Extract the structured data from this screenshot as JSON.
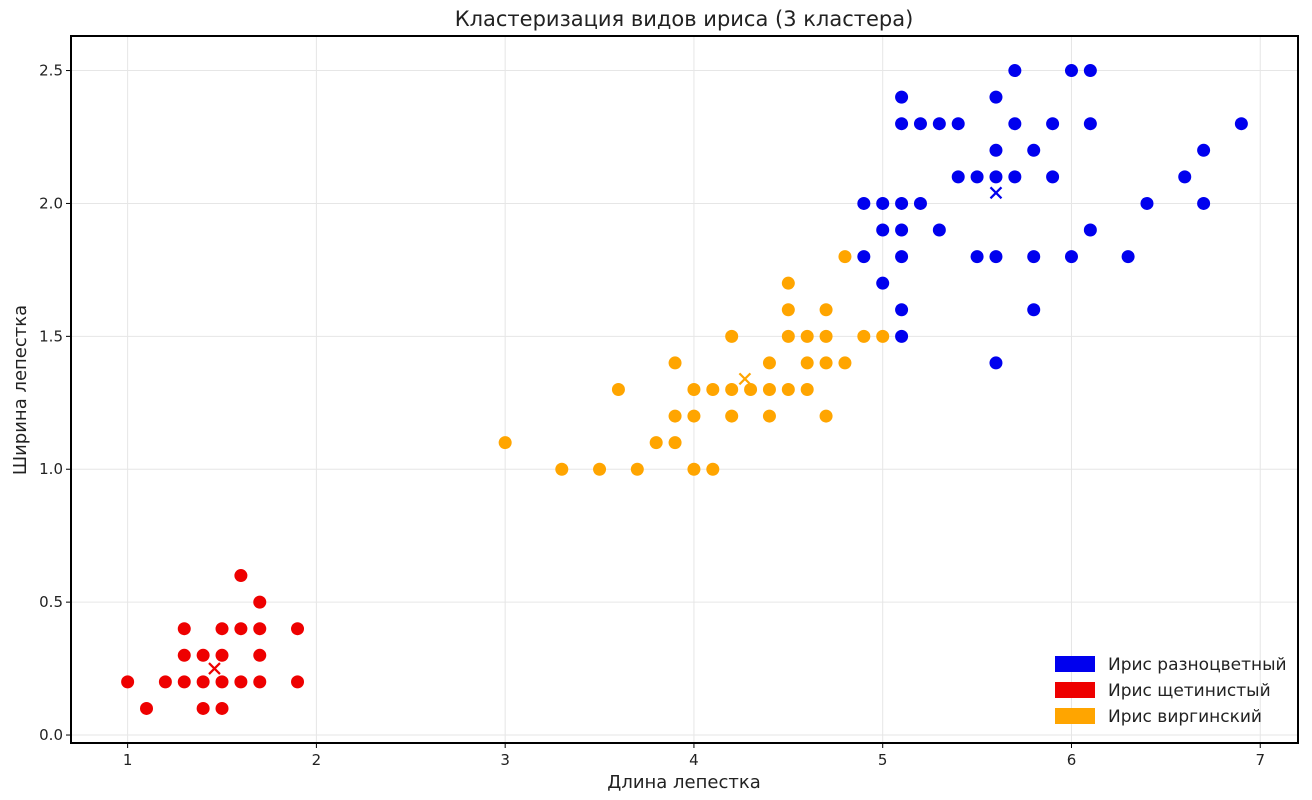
{
  "chart_data": {
    "type": "scatter",
    "title": "Кластеризация видов ириса (3 кластера)",
    "xlabel": "Длина лепестка",
    "ylabel": "Ширина лепестка",
    "xlim": [
      0.7,
      7.2
    ],
    "ylim": [
      -0.03,
      2.63
    ],
    "xticks": [
      1,
      2,
      3,
      4,
      5,
      6,
      7
    ],
    "yticks": [
      0.0,
      0.5,
      1.0,
      1.5,
      2.0,
      2.5
    ],
    "ytick_labels": [
      "0.0",
      "0.5",
      "1.0",
      "1.5",
      "2.0",
      "2.5"
    ],
    "grid": true,
    "legend_position": "bottom-right",
    "series": [
      {
        "name": "Ирис разноцветный",
        "color": "#0000ee",
        "centroid": [
          5.6,
          2.04
        ],
        "points": [
          [
            5.7,
            2.5
          ],
          [
            6.0,
            2.5
          ],
          [
            6.1,
            2.5
          ],
          [
            5.1,
            2.4
          ],
          [
            5.6,
            2.4
          ],
          [
            5.1,
            2.3
          ],
          [
            5.2,
            2.3
          ],
          [
            5.3,
            2.3
          ],
          [
            5.4,
            2.3
          ],
          [
            5.7,
            2.3
          ],
          [
            5.9,
            2.3
          ],
          [
            6.1,
            2.3
          ],
          [
            6.9,
            2.3
          ],
          [
            5.6,
            2.2
          ],
          [
            5.8,
            2.2
          ],
          [
            6.7,
            2.2
          ],
          [
            5.4,
            2.1
          ],
          [
            5.5,
            2.1
          ],
          [
            5.6,
            2.1
          ],
          [
            5.7,
            2.1
          ],
          [
            5.9,
            2.1
          ],
          [
            6.6,
            2.1
          ],
          [
            4.9,
            2.0
          ],
          [
            5.0,
            2.0
          ],
          [
            5.1,
            2.0
          ],
          [
            5.2,
            2.0
          ],
          [
            6.4,
            2.0
          ],
          [
            6.7,
            2.0
          ],
          [
            5.0,
            1.9
          ],
          [
            5.1,
            1.9
          ],
          [
            5.3,
            1.9
          ],
          [
            6.1,
            1.9
          ],
          [
            4.9,
            1.8
          ],
          [
            5.1,
            1.8
          ],
          [
            5.5,
            1.8
          ],
          [
            5.6,
            1.8
          ],
          [
            5.8,
            1.8
          ],
          [
            6.0,
            1.8
          ],
          [
            6.3,
            1.8
          ],
          [
            5.0,
            1.7
          ],
          [
            5.1,
            1.6
          ],
          [
            5.8,
            1.6
          ],
          [
            5.1,
            1.5
          ],
          [
            5.6,
            1.4
          ]
        ]
      },
      {
        "name": "Ирис щетинистый",
        "color": "#ee0000",
        "centroid": [
          1.46,
          0.25
        ],
        "points": [
          [
            1.6,
            0.6
          ],
          [
            1.7,
            0.5
          ],
          [
            1.3,
            0.4
          ],
          [
            1.5,
            0.4
          ],
          [
            1.6,
            0.4
          ],
          [
            1.7,
            0.4
          ],
          [
            1.9,
            0.4
          ],
          [
            1.3,
            0.3
          ],
          [
            1.4,
            0.3
          ],
          [
            1.5,
            0.3
          ],
          [
            1.7,
            0.3
          ],
          [
            1.0,
            0.2
          ],
          [
            1.2,
            0.2
          ],
          [
            1.3,
            0.2
          ],
          [
            1.4,
            0.2
          ],
          [
            1.5,
            0.2
          ],
          [
            1.6,
            0.2
          ],
          [
            1.7,
            0.2
          ],
          [
            1.9,
            0.2
          ],
          [
            1.1,
            0.1
          ],
          [
            1.4,
            0.1
          ],
          [
            1.5,
            0.1
          ]
        ]
      },
      {
        "name": "Ирис виргинский",
        "color": "#ffa500",
        "centroid": [
          4.27,
          1.34
        ],
        "points": [
          [
            4.8,
            1.8
          ],
          [
            4.5,
            1.7
          ],
          [
            4.5,
            1.6
          ],
          [
            4.7,
            1.6
          ],
          [
            4.2,
            1.5
          ],
          [
            4.5,
            1.5
          ],
          [
            4.6,
            1.5
          ],
          [
            4.7,
            1.5
          ],
          [
            4.9,
            1.5
          ],
          [
            5.0,
            1.5
          ],
          [
            3.9,
            1.4
          ],
          [
            4.4,
            1.4
          ],
          [
            4.6,
            1.4
          ],
          [
            4.7,
            1.4
          ],
          [
            4.8,
            1.4
          ],
          [
            3.6,
            1.3
          ],
          [
            4.0,
            1.3
          ],
          [
            4.1,
            1.3
          ],
          [
            4.2,
            1.3
          ],
          [
            4.3,
            1.3
          ],
          [
            4.4,
            1.3
          ],
          [
            4.5,
            1.3
          ],
          [
            4.6,
            1.3
          ],
          [
            3.9,
            1.2
          ],
          [
            4.0,
            1.2
          ],
          [
            4.2,
            1.2
          ],
          [
            4.4,
            1.2
          ],
          [
            4.7,
            1.2
          ],
          [
            3.8,
            1.1
          ],
          [
            3.9,
            1.1
          ],
          [
            3.0,
            1.1
          ],
          [
            3.3,
            1.0
          ],
          [
            3.5,
            1.0
          ],
          [
            3.7,
            1.0
          ],
          [
            4.0,
            1.0
          ],
          [
            4.1,
            1.0
          ]
        ]
      }
    ]
  }
}
